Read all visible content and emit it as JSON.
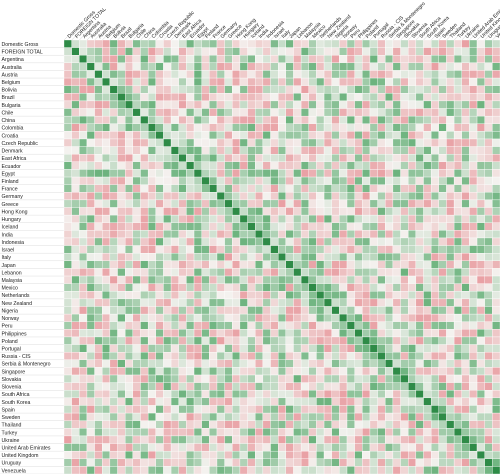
{
  "chart_data": {
    "type": "heatmap",
    "title": "",
    "subtitle": "",
    "xlabel": "",
    "ylabel": "",
    "labels": [
      "Domestic Gross",
      "FOREIGN TOTAL",
      "Argentina",
      "Australia",
      "Austria",
      "Belgium",
      "Bolivia",
      "Brazil",
      "Bulgaria",
      "Chile",
      "China",
      "Colombia",
      "Croatia",
      "Czech Republic",
      "Denmark",
      "East Africa",
      "Ecuador",
      "Egypt",
      "Finland",
      "France",
      "Germany",
      "Greece",
      "Hong Kong",
      "Hungary",
      "Iceland",
      "India",
      "Indonesia",
      "Israel",
      "Italy",
      "Japan",
      "Lebanon",
      "Malaysia",
      "Mexico",
      "Netherlands",
      "New Zealand",
      "Nigeria",
      "Norway",
      "Peru",
      "Philippines",
      "Poland",
      "Portugal",
      "Russia - CIS",
      "Serbia & Montenegro",
      "Singapore",
      "Slovakia",
      "Slovenia",
      "South Africa",
      "South Korea",
      "Spain",
      "Sweden",
      "Thailand",
      "Turkey",
      "Ukraine",
      "United Arab Emirates",
      "United Kingdom",
      "Uruguay",
      "Venezuela"
    ],
    "value_range": [
      0,
      1
    ],
    "diagonal_value": 1.0,
    "colors": {
      "high": "#3f9e58",
      "mid": "#f4f2ef",
      "low": "#e5858b",
      "diagonal": "#2e8b47",
      "grid": "#ffffff",
      "row_label_bg": "#ffffff"
    },
    "note": "Cell values are small printed correlation coefficients; individual numbers are not legible at this resolution and are approximated by colour."
  }
}
